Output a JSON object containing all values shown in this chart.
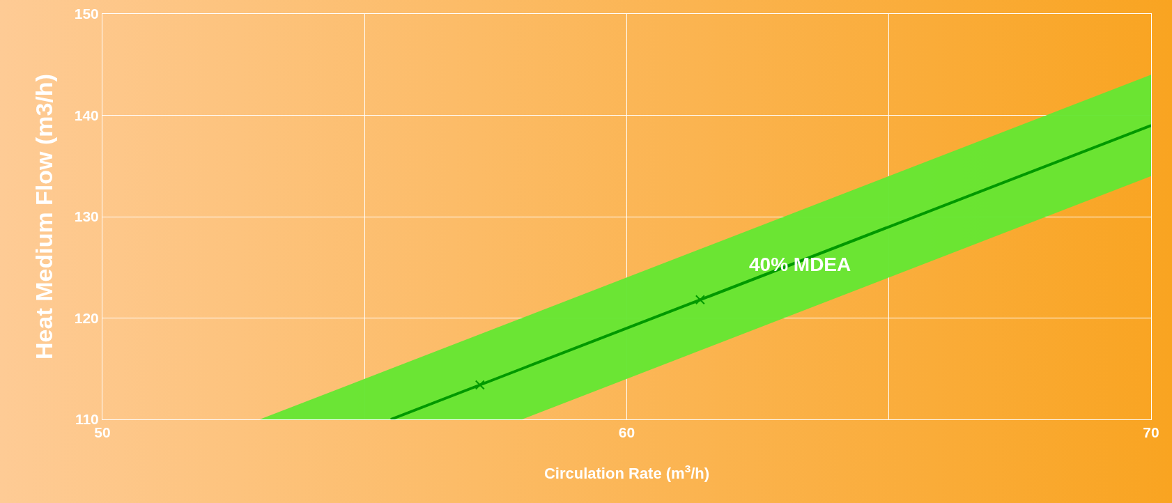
{
  "chart_data": {
    "type": "line",
    "xlabel": "Circulation Rate (m$^{3}$/h)",
    "ylabel": "Heat Medium Flow (m3/h)",
    "xlim": [
      50,
      70
    ],
    "xticks": [
      50,
      {
        "value": 55,
        "label": null
      },
      60,
      {
        "value": 65,
        "label": null
      },
      70
    ],
    "ylim": [
      110,
      150
    ],
    "yticks": [
      110,
      120,
      130,
      140,
      150
    ],
    "grid": true,
    "marker": "none",
    "line_style": "solid",
    "series": [
      {
        "color": "#009900",
        "x": [
          53,
          55.5,
          58,
          61.4,
          70
        ],
        "values": [
          null,
          110,
          115,
          121.8,
          139
        ],
        "lower": [
          110,
          110,
          110,
          116.8,
          134
        ],
        "upper": [
          110,
          115,
          120,
          126.8,
          144
        ]
      },
      {
        "type": "scatter",
        "color": "#009900",
        "marker": "cross",
        "x": [
          57.2,
          61.4
        ],
        "values": [
          113.4,
          121.8
        ]
      }
    ],
    "annotations": [
      {
        "text": "40% MDEA",
        "x": 63.3,
        "y": 125.3
      }
    ]
  }
}
